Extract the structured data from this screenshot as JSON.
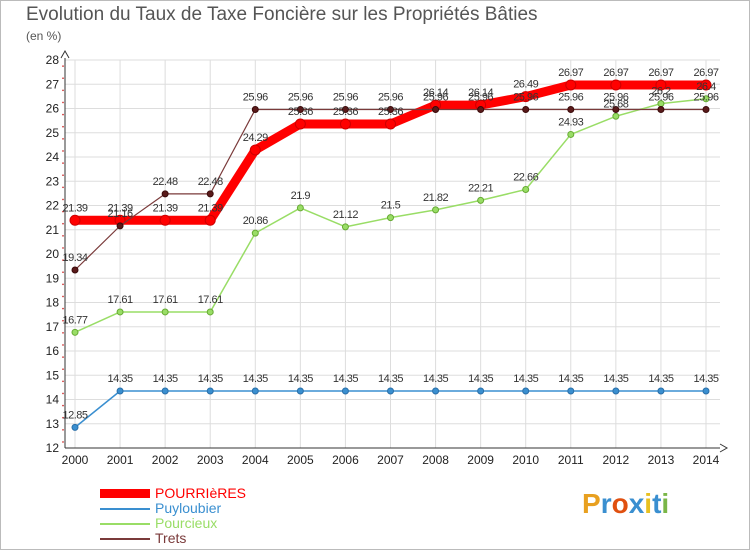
{
  "header": {
    "title": "Evolution du Taux de Taxe Foncière sur les Propriétés Bâties",
    "unit": "(en %)"
  },
  "logo": {
    "text": "Proxiti",
    "colors": [
      "#e8a020",
      "#3a8fd0",
      "#e05010",
      "#3a8fd0",
      "#e8c020",
      "#3a8fd0",
      "#7ab648"
    ]
  },
  "chart_data": {
    "type": "line",
    "title": "Evolution du Taux de Taxe Foncière sur les Propriétés Bâties",
    "ylabel": "(en %)",
    "xlabel": "",
    "ylim": [
      12,
      28
    ],
    "yticks": [
      12,
      13,
      14,
      15,
      16,
      17,
      18,
      19,
      20,
      21,
      22,
      23,
      24,
      25,
      26,
      27,
      28
    ],
    "x": [
      "2000",
      "2001",
      "2002",
      "2003",
      "2004",
      "2005",
      "2006",
      "2007",
      "2008",
      "2009",
      "2010",
      "2011",
      "2012",
      "2013",
      "2014"
    ],
    "legend_position": "bottom-left",
    "series": [
      {
        "name": "POURRIèRES",
        "color": "#ff0000",
        "values": [
          21.39,
          21.39,
          21.39,
          21.39,
          24.29,
          25.36,
          25.36,
          25.36,
          26.14,
          26.14,
          26.49,
          26.97,
          26.97,
          26.97,
          26.97
        ],
        "labels": [
          "21.39",
          "21.39",
          "21.39",
          "21.39",
          "24.29",
          "25.36",
          "25.36",
          "25.36",
          "26.14",
          "26.14",
          "26.49",
          "26.97",
          "26.97",
          "26.97",
          "26.97"
        ]
      },
      {
        "name": "Puyloubier",
        "color": "#3a8fd0",
        "values": [
          12.85,
          14.35,
          14.35,
          14.35,
          14.35,
          14.35,
          14.35,
          14.35,
          14.35,
          14.35,
          14.35,
          14.35,
          14.35,
          14.35,
          14.35
        ],
        "labels": [
          "12.85",
          "14.35",
          "14.35",
          "14.35",
          "14.35",
          "14.35",
          "14.35",
          "14.35",
          "14.35",
          "14.35",
          "14.35",
          "14.35",
          "14.35",
          "14.35",
          "14.35"
        ]
      },
      {
        "name": "Pourcieux",
        "color": "#99dd66",
        "values": [
          16.77,
          17.61,
          17.61,
          17.61,
          20.86,
          21.9,
          21.12,
          21.5,
          21.82,
          22.21,
          22.66,
          24.93,
          25.68,
          26.2,
          26.4
        ],
        "labels": [
          "16.77",
          "17.61",
          "17.61",
          "17.61",
          "20.86",
          "21.9",
          "21.12",
          "21.5",
          "21.82",
          "22.21",
          "22.66",
          "24.93",
          "25.68",
          "26.2",
          "26.4"
        ]
      },
      {
        "name": "Trets",
        "color": "#7a3a3a",
        "values": [
          19.34,
          21.16,
          22.48,
          22.48,
          25.96,
          25.96,
          25.96,
          25.96,
          25.96,
          25.96,
          25.96,
          25.96,
          25.96,
          25.96,
          25.96
        ],
        "labels": [
          "19.34",
          "21.16",
          "22.48",
          "22.48",
          "25.96",
          "25.96",
          "25.96",
          "25.96",
          "25.96",
          "25.96",
          "25.96",
          "25.96",
          "25.96",
          "25.96",
          "25.96"
        ]
      }
    ]
  }
}
